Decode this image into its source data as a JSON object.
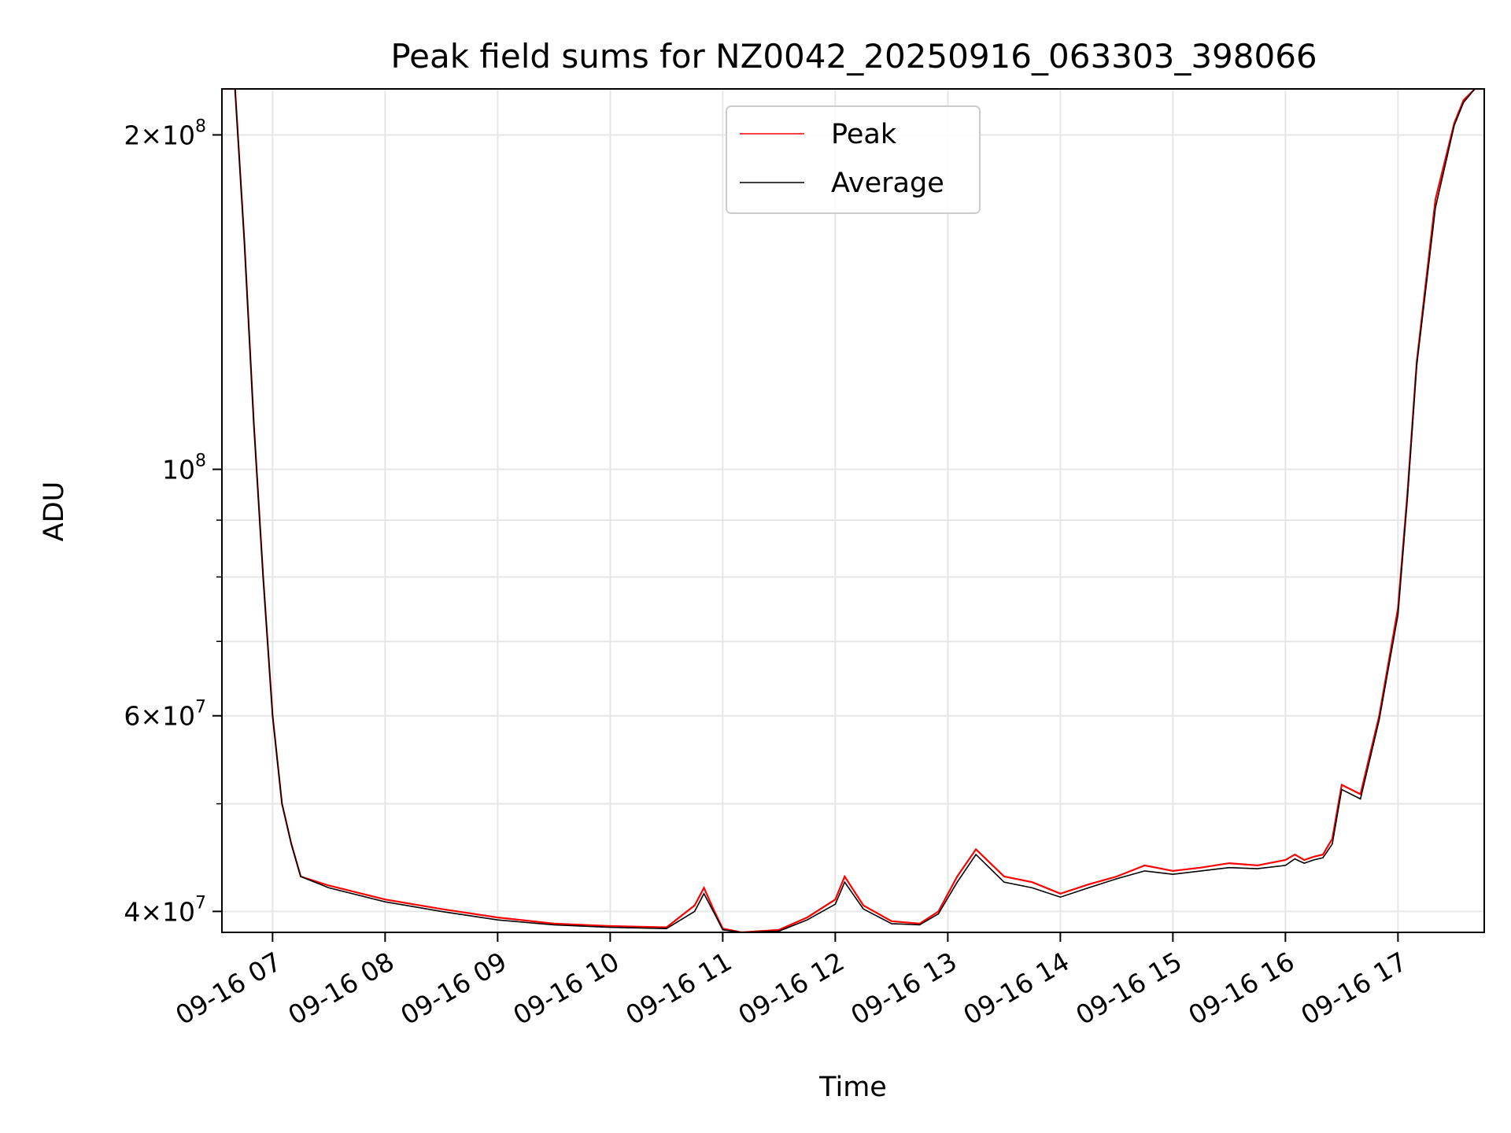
{
  "chart_data": {
    "type": "line",
    "title": "Peak field sums for NZ0042_20250916_063303_398066",
    "xlabel": "Time",
    "ylabel": "ADU",
    "yscale": "log",
    "xlim": [
      "2025-09-16 06:33",
      "2025-09-16 17:46"
    ],
    "ylim": [
      38300000,
      220000000
    ],
    "grid": true,
    "legend_position": "top-center",
    "x_tick_labels": [
      "09-16 07",
      "09-16 08",
      "09-16 09",
      "09-16 10",
      "09-16 11",
      "09-16 12",
      "09-16 13",
      "09-16 14",
      "09-16 15",
      "09-16 16",
      "09-16 17"
    ],
    "y_ticks": [
      {
        "value": 200000000,
        "mantissa": "2",
        "exp": "8"
      },
      {
        "value": 100000000,
        "mantissa": "",
        "exp": "8"
      },
      {
        "value": 60000000,
        "mantissa": "6",
        "exp": "7"
      },
      {
        "value": 40000000,
        "mantissa": "4",
        "exp": "7"
      }
    ],
    "y_minor_ticks": [
      50000000,
      70000000,
      80000000,
      90000000
    ],
    "series": [
      {
        "name": "Peak",
        "color": "#ff0000",
        "x": [
          "2025-09-16 06:33",
          "2025-09-16 06:40",
          "2025-09-16 06:45",
          "2025-09-16 06:50",
          "2025-09-16 06:55",
          "2025-09-16 07:00",
          "2025-09-16 07:05",
          "2025-09-16 07:10",
          "2025-09-16 07:15",
          "2025-09-16 07:30",
          "2025-09-16 08:00",
          "2025-09-16 08:30",
          "2025-09-16 09:00",
          "2025-09-16 09:30",
          "2025-09-16 10:00",
          "2025-09-16 10:30",
          "2025-09-16 10:45",
          "2025-09-16 10:50",
          "2025-09-16 10:55",
          "2025-09-16 11:00",
          "2025-09-16 11:10",
          "2025-09-16 11:30",
          "2025-09-16 11:45",
          "2025-09-16 12:00",
          "2025-09-16 12:05",
          "2025-09-16 12:15",
          "2025-09-16 12:30",
          "2025-09-16 12:45",
          "2025-09-16 12:55",
          "2025-09-16 13:05",
          "2025-09-16 13:15",
          "2025-09-16 13:30",
          "2025-09-16 13:45",
          "2025-09-16 14:00",
          "2025-09-16 14:15",
          "2025-09-16 14:30",
          "2025-09-16 14:45",
          "2025-09-16 15:00",
          "2025-09-16 15:15",
          "2025-09-16 15:30",
          "2025-09-16 15:45",
          "2025-09-16 16:00",
          "2025-09-16 16:05",
          "2025-09-16 16:10",
          "2025-09-16 16:15",
          "2025-09-16 16:20",
          "2025-09-16 16:25",
          "2025-09-16 16:30",
          "2025-09-16 16:40",
          "2025-09-16 16:50",
          "2025-09-16 17:00",
          "2025-09-16 17:05",
          "2025-09-16 17:10",
          "2025-09-16 17:20",
          "2025-09-16 17:30",
          "2025-09-16 17:35",
          "2025-09-16 17:41",
          "2025-09-16 17:46"
        ],
        "values": [
          222000000,
          220000000,
          160000000,
          110000000,
          80000000,
          60000000,
          50000000,
          46000000,
          43000000,
          42200000,
          41000000,
          40200000,
          39500000,
          39000000,
          38800000,
          38700000,
          40500000,
          42000000,
          40200000,
          38600000,
          38300000,
          38500000,
          39500000,
          41000000,
          43000000,
          40500000,
          39200000,
          39000000,
          40000000,
          43000000,
          45500000,
          43000000,
          42500000,
          41500000,
          42300000,
          43000000,
          44000000,
          43500000,
          43800000,
          44200000,
          44000000,
          44500000,
          45000000,
          44500000,
          44800000,
          45000000,
          46500000,
          52000000,
          51000000,
          60000000,
          75000000,
          95000000,
          125000000,
          175000000,
          205000000,
          215000000,
          222000000,
          222000000
        ]
      },
      {
        "name": "Average",
        "color": "#000000",
        "x": [
          "2025-09-16 06:33",
          "2025-09-16 06:40",
          "2025-09-16 06:45",
          "2025-09-16 06:50",
          "2025-09-16 06:55",
          "2025-09-16 07:00",
          "2025-09-16 07:05",
          "2025-09-16 07:10",
          "2025-09-16 07:15",
          "2025-09-16 07:30",
          "2025-09-16 08:00",
          "2025-09-16 08:30",
          "2025-09-16 09:00",
          "2025-09-16 09:30",
          "2025-09-16 10:00",
          "2025-09-16 10:30",
          "2025-09-16 10:45",
          "2025-09-16 10:50",
          "2025-09-16 10:55",
          "2025-09-16 11:00",
          "2025-09-16 11:10",
          "2025-09-16 11:30",
          "2025-09-16 11:45",
          "2025-09-16 12:00",
          "2025-09-16 12:05",
          "2025-09-16 12:15",
          "2025-09-16 12:30",
          "2025-09-16 12:45",
          "2025-09-16 12:55",
          "2025-09-16 13:05",
          "2025-09-16 13:15",
          "2025-09-16 13:30",
          "2025-09-16 13:45",
          "2025-09-16 14:00",
          "2025-09-16 14:15",
          "2025-09-16 14:30",
          "2025-09-16 14:45",
          "2025-09-16 15:00",
          "2025-09-16 15:15",
          "2025-09-16 15:30",
          "2025-09-16 15:45",
          "2025-09-16 16:00",
          "2025-09-16 16:05",
          "2025-09-16 16:10",
          "2025-09-16 16:15",
          "2025-09-16 16:20",
          "2025-09-16 16:25",
          "2025-09-16 16:30",
          "2025-09-16 16:40",
          "2025-09-16 16:50",
          "2025-09-16 17:00",
          "2025-09-16 17:05",
          "2025-09-16 17:10",
          "2025-09-16 17:20",
          "2025-09-16 17:30",
          "2025-09-16 17:35",
          "2025-09-16 17:41",
          "2025-09-16 17:46"
        ],
        "values": [
          222000000,
          220000000,
          160000000,
          110000000,
          80000000,
          60000000,
          50000000,
          46000000,
          43000000,
          42000000,
          40800000,
          40000000,
          39300000,
          38900000,
          38700000,
          38600000,
          40000000,
          41500000,
          40000000,
          38500000,
          38200000,
          38400000,
          39300000,
          40600000,
          42500000,
          40200000,
          39000000,
          38900000,
          39800000,
          42500000,
          45000000,
          42500000,
          42000000,
          41200000,
          42000000,
          42800000,
          43500000,
          43200000,
          43500000,
          43800000,
          43700000,
          44000000,
          44600000,
          44200000,
          44500000,
          44700000,
          46000000,
          51500000,
          50500000,
          59500000,
          74000000,
          94000000,
          124000000,
          172000000,
          204000000,
          214000000,
          222000000,
          222000000
        ]
      }
    ]
  }
}
